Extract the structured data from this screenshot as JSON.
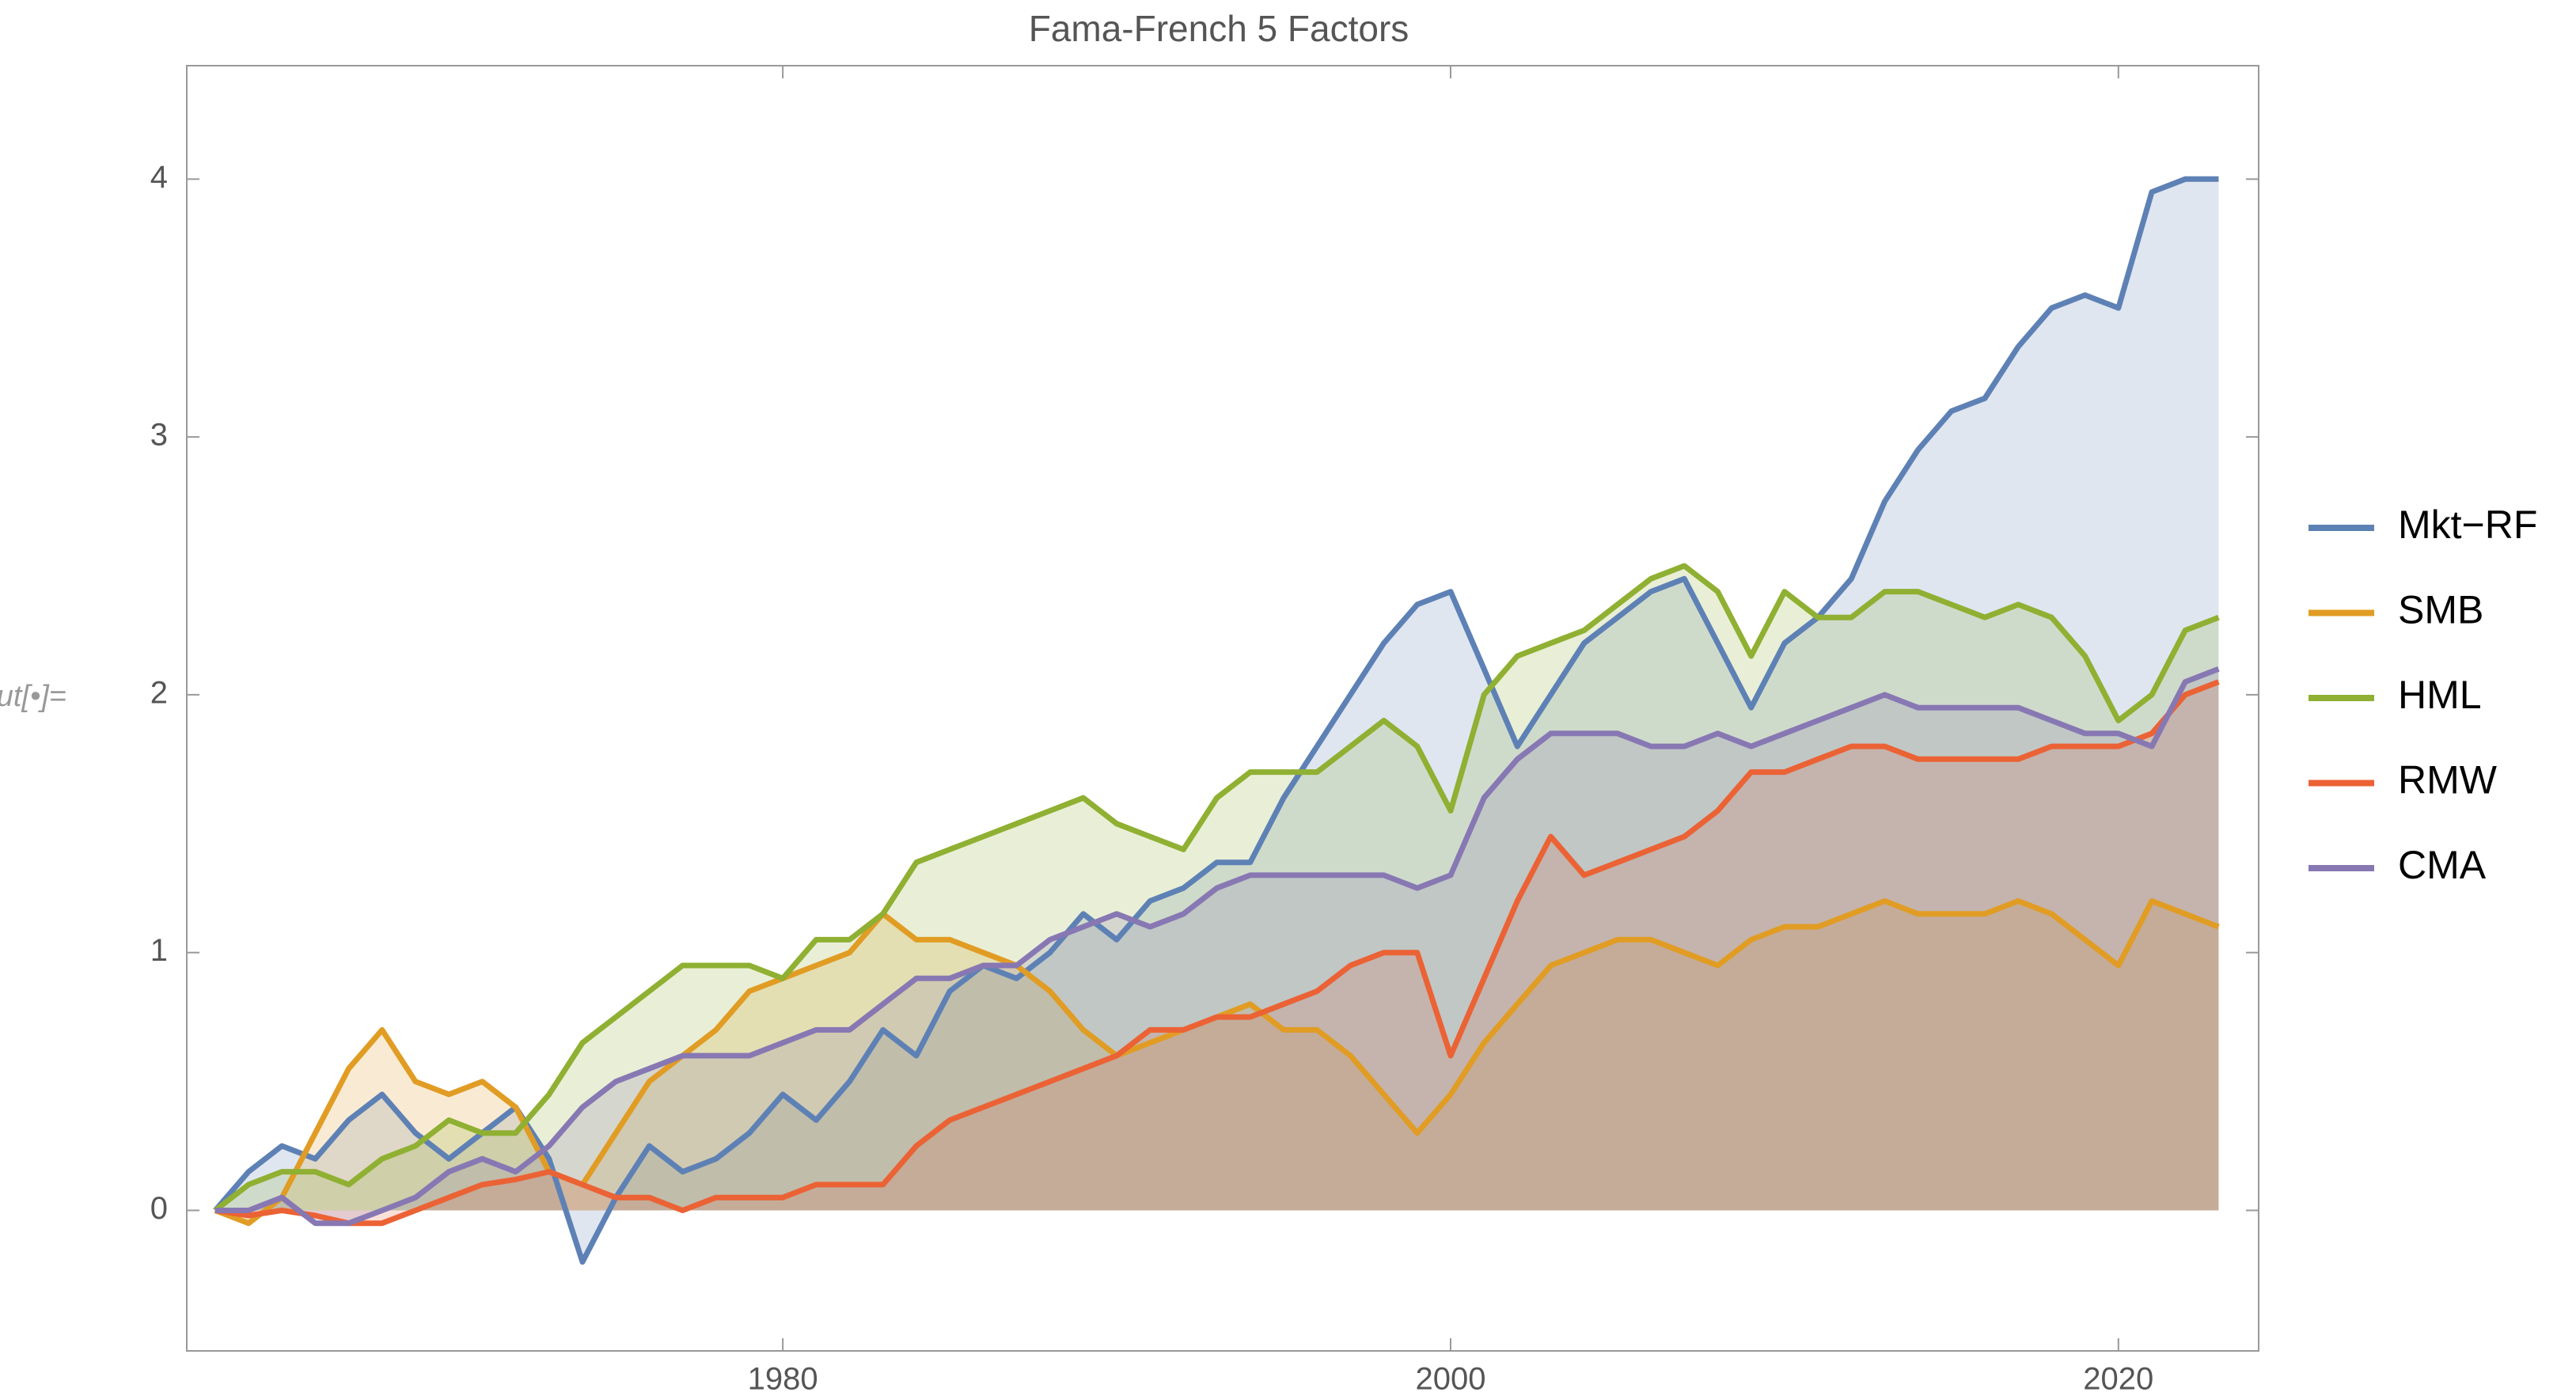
{
  "cell_label": "Out[•]=",
  "chart_data": {
    "type": "area-line",
    "title": "Fama-French 5 Factors",
    "x": [
      1963,
      1964,
      1965,
      1966,
      1967,
      1968,
      1969,
      1970,
      1971,
      1972,
      1973,
      1974,
      1975,
      1976,
      1977,
      1978,
      1979,
      1980,
      1981,
      1982,
      1983,
      1984,
      1985,
      1986,
      1987,
      1988,
      1989,
      1990,
      1991,
      1992,
      1993,
      1994,
      1995,
      1996,
      1997,
      1998,
      1999,
      2000,
      2001,
      2002,
      2003,
      2004,
      2005,
      2006,
      2007,
      2008,
      2009,
      2010,
      2011,
      2012,
      2013,
      2014,
      2015,
      2016,
      2017,
      2018,
      2019,
      2020,
      2021,
      2022,
      2023
    ],
    "series": [
      {
        "name": "Mkt−RF",
        "color": "#5e81b5",
        "values": [
          0,
          0.15,
          0.25,
          0.2,
          0.35,
          0.45,
          0.3,
          0.2,
          0.3,
          0.4,
          0.2,
          -0.2,
          0.05,
          0.25,
          0.15,
          0.2,
          0.3,
          0.45,
          0.35,
          0.5,
          0.7,
          0.6,
          0.85,
          0.95,
          0.9,
          1.0,
          1.15,
          1.05,
          1.2,
          1.25,
          1.35,
          1.35,
          1.6,
          1.8,
          2.0,
          2.2,
          2.35,
          2.4,
          2.1,
          1.8,
          2.0,
          2.2,
          2.3,
          2.4,
          2.45,
          2.2,
          1.95,
          2.2,
          2.3,
          2.45,
          2.75,
          2.95,
          3.1,
          3.15,
          3.35,
          3.5,
          3.55,
          3.5,
          3.95,
          4.0,
          4.0
        ]
      },
      {
        "name": "SMB",
        "color": "#e19c24",
        "values": [
          0,
          -0.05,
          0.05,
          0.3,
          0.55,
          0.7,
          0.5,
          0.45,
          0.5,
          0.4,
          0.15,
          0.1,
          0.3,
          0.5,
          0.6,
          0.7,
          0.85,
          0.9,
          0.95,
          1.0,
          1.15,
          1.05,
          1.05,
          1.0,
          0.95,
          0.85,
          0.7,
          0.6,
          0.65,
          0.7,
          0.75,
          0.8,
          0.7,
          0.7,
          0.6,
          0.45,
          0.3,
          0.45,
          0.65,
          0.8,
          0.95,
          1.0,
          1.05,
          1.05,
          1.0,
          0.95,
          1.05,
          1.1,
          1.1,
          1.15,
          1.2,
          1.15,
          1.15,
          1.15,
          1.2,
          1.15,
          1.05,
          0.95,
          1.2,
          1.15,
          1.1
        ]
      },
      {
        "name": "HML",
        "color": "#8fb032",
        "values": [
          0,
          0.1,
          0.15,
          0.15,
          0.1,
          0.2,
          0.25,
          0.35,
          0.3,
          0.3,
          0.45,
          0.65,
          0.75,
          0.85,
          0.95,
          0.95,
          0.95,
          0.9,
          1.05,
          1.05,
          1.15,
          1.35,
          1.4,
          1.45,
          1.5,
          1.55,
          1.6,
          1.5,
          1.45,
          1.4,
          1.6,
          1.7,
          1.7,
          1.7,
          1.8,
          1.9,
          1.8,
          1.55,
          2.0,
          2.15,
          2.2,
          2.25,
          2.35,
          2.45,
          2.5,
          2.4,
          2.15,
          2.4,
          2.3,
          2.3,
          2.4,
          2.4,
          2.35,
          2.3,
          2.35,
          2.3,
          2.15,
          1.9,
          2.0,
          2.25,
          2.3
        ]
      },
      {
        "name": "RMW",
        "color": "#eb6235",
        "values": [
          0,
          -0.02,
          0.0,
          -0.02,
          -0.05,
          -0.05,
          0.0,
          0.05,
          0.1,
          0.12,
          0.15,
          0.1,
          0.05,
          0.05,
          0.0,
          0.05,
          0.05,
          0.05,
          0.1,
          0.1,
          0.1,
          0.25,
          0.35,
          0.4,
          0.45,
          0.5,
          0.55,
          0.6,
          0.7,
          0.7,
          0.75,
          0.75,
          0.8,
          0.85,
          0.95,
          1.0,
          1.0,
          0.6,
          0.9,
          1.2,
          1.45,
          1.3,
          1.35,
          1.4,
          1.45,
          1.55,
          1.7,
          1.7,
          1.75,
          1.8,
          1.8,
          1.75,
          1.75,
          1.75,
          1.75,
          1.8,
          1.8,
          1.8,
          1.85,
          2.0,
          2.05
        ]
      },
      {
        "name": "CMA",
        "color": "#8778b3",
        "values": [
          0,
          0.0,
          0.05,
          -0.05,
          -0.05,
          0.0,
          0.05,
          0.15,
          0.2,
          0.15,
          0.25,
          0.4,
          0.5,
          0.55,
          0.6,
          0.6,
          0.6,
          0.65,
          0.7,
          0.7,
          0.8,
          0.9,
          0.9,
          0.95,
          0.95,
          1.05,
          1.1,
          1.15,
          1.1,
          1.15,
          1.25,
          1.3,
          1.3,
          1.3,
          1.3,
          1.3,
          1.25,
          1.3,
          1.6,
          1.75,
          1.85,
          1.85,
          1.85,
          1.8,
          1.8,
          1.85,
          1.8,
          1.85,
          1.9,
          1.95,
          2.0,
          1.95,
          1.95,
          1.95,
          1.95,
          1.9,
          1.85,
          1.85,
          1.8,
          2.05,
          2.1
        ]
      }
    ],
    "xlim": [
      1962.15,
      2024.2
    ],
    "xticks": [
      1980,
      2000,
      2020
    ],
    "ylim": [
      -0.545,
      4.44
    ],
    "yticks": [
      0,
      1,
      2,
      3,
      4
    ],
    "fill_to_axis": true,
    "grid": false,
    "legend": "right"
  }
}
